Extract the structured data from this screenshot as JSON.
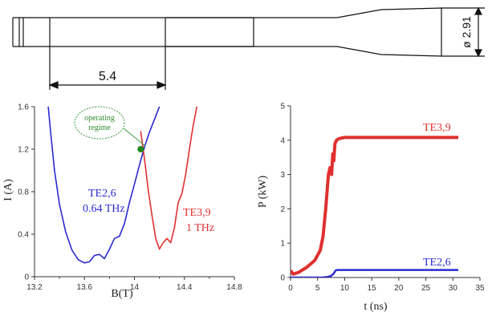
{
  "colors": {
    "blue": "#2a2ad0",
    "red": "#e03030",
    "green_marker": "#1e8a1e",
    "callout_text": "#2e8b2e",
    "axis": "#333333",
    "line": "#111111"
  },
  "drawing": {
    "dim_length": "5.4",
    "dim_diameter": "ø 2.91"
  },
  "callout": {
    "line1": "operating",
    "line2": "regime"
  },
  "chart_data": [
    {
      "type": "line",
      "xlabel": "B(T)",
      "ylabel": "I (A)",
      "xlim": [
        13.2,
        14.8
      ],
      "ylim": [
        0,
        1.6
      ],
      "xticks": [
        "13.2",
        "13.6",
        "14",
        "14.4",
        "14.8"
      ],
      "xticks_minor": [
        "13.4",
        "13.8",
        "14.2",
        "14.6"
      ],
      "yticks": [
        "0",
        "0.4",
        "0.8",
        "1.2",
        "1.6"
      ],
      "grid": false,
      "annotations": [
        {
          "name": "blue",
          "text": [
            "TE2,6",
            "0.64 THz"
          ]
        },
        {
          "name": "red",
          "text": [
            "TE3,9",
            "1 THz"
          ]
        }
      ],
      "series": [
        {
          "name": "TE2,6",
          "color": "#2a2ad0",
          "x": [
            13.31,
            13.33,
            13.36,
            13.4,
            13.45,
            13.5,
            13.55,
            13.6,
            13.64,
            13.68,
            13.72,
            13.76,
            13.8,
            13.84,
            13.88,
            13.92,
            13.96,
            14.0,
            14.04,
            14.08,
            14.12,
            14.16,
            14.2
          ],
          "y": [
            1.6,
            1.35,
            1.0,
            0.68,
            0.42,
            0.25,
            0.16,
            0.13,
            0.14,
            0.2,
            0.21,
            0.17,
            0.26,
            0.36,
            0.38,
            0.5,
            0.7,
            0.87,
            1.05,
            1.22,
            1.36,
            1.48,
            1.6
          ]
        },
        {
          "name": "TE3,9",
          "color": "#e03030",
          "x": [
            14.05,
            14.07,
            14.09,
            14.11,
            14.14,
            14.17,
            14.2,
            14.23,
            14.26,
            14.29,
            14.32,
            14.35,
            14.38,
            14.41,
            14.44,
            14.47,
            14.5
          ],
          "y": [
            1.37,
            1.2,
            1.02,
            0.82,
            0.58,
            0.36,
            0.26,
            0.32,
            0.36,
            0.32,
            0.46,
            0.7,
            0.78,
            0.96,
            1.2,
            1.42,
            1.6
          ]
        }
      ],
      "marker": {
        "x": 14.05,
        "y": 1.2,
        "color": "#1e8a1e"
      }
    },
    {
      "type": "line",
      "xlabel": "t (ns)",
      "ylabel": "P (kW)",
      "xlim": [
        0,
        35
      ],
      "ylim": [
        0,
        5
      ],
      "xticks": [
        "0",
        "5",
        "10",
        "15",
        "20",
        "25",
        "30",
        "35"
      ],
      "yticks": [
        "0",
        "1",
        "2",
        "3",
        "4",
        "5"
      ],
      "grid": false,
      "series": [
        {
          "name": "TE3,9",
          "color": "#e03030",
          "x": [
            0,
            0.5,
            1.5,
            3,
            4.5,
            5.5,
            6,
            6.5,
            7,
            7.3,
            7.6,
            7.8,
            8.0,
            8.2,
            8.5,
            9,
            10,
            12,
            15,
            20,
            25,
            31
          ],
          "y": [
            0.2,
            0.1,
            0.15,
            0.3,
            0.5,
            0.8,
            1.2,
            2.0,
            3.0,
            3.2,
            3.0,
            3.6,
            3.4,
            3.9,
            4.0,
            4.05,
            4.08,
            4.08,
            4.08,
            4.08,
            4.08,
            4.08
          ]
        },
        {
          "name": "TE2,6",
          "color": "#2a2ad0",
          "x": [
            0,
            6,
            7,
            7.5,
            8,
            8.3,
            8.6,
            9,
            10,
            15,
            20,
            25,
            31
          ],
          "y": [
            0.0,
            0.0,
            0.02,
            0.05,
            0.12,
            0.2,
            0.22,
            0.22,
            0.22,
            0.22,
            0.22,
            0.22,
            0.22
          ]
        }
      ]
    }
  ]
}
